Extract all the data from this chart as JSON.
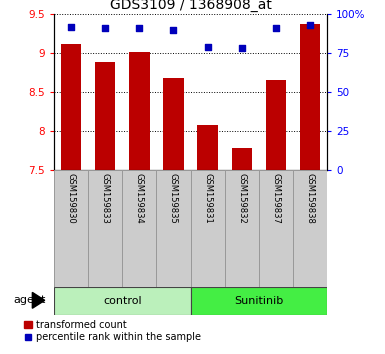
{
  "title": "GDS3109 / 1368908_at",
  "samples": [
    "GSM159830",
    "GSM159833",
    "GSM159834",
    "GSM159835",
    "GSM159831",
    "GSM159832",
    "GSM159837",
    "GSM159838"
  ],
  "bar_values": [
    9.12,
    8.88,
    9.01,
    8.68,
    8.08,
    7.78,
    8.65,
    9.38
  ],
  "percentile_values": [
    92,
    91,
    91,
    90,
    79,
    78,
    91,
    93
  ],
  "groups": [
    {
      "label": "control",
      "indices": [
        0,
        1,
        2,
        3
      ],
      "color": "#bbf0bb"
    },
    {
      "label": "Sunitinib",
      "indices": [
        4,
        5,
        6,
        7
      ],
      "color": "#44ee44"
    }
  ],
  "ylim_left": [
    7.5,
    9.5
  ],
  "ylim_right": [
    0,
    100
  ],
  "yticks_left": [
    7.5,
    8.0,
    8.5,
    9.0,
    9.5
  ],
  "yticks_right": [
    0,
    25,
    50,
    75,
    100
  ],
  "bar_color": "#bb0000",
  "dot_color": "#0000bb",
  "bar_width": 0.6,
  "grid_color": "#000000",
  "label_area_color": "#cccccc",
  "agent_label": "agent",
  "legend_bar_label": "transformed count",
  "legend_dot_label": "percentile rank within the sample",
  "figsize": [
    3.85,
    3.54
  ],
  "dpi": 100
}
